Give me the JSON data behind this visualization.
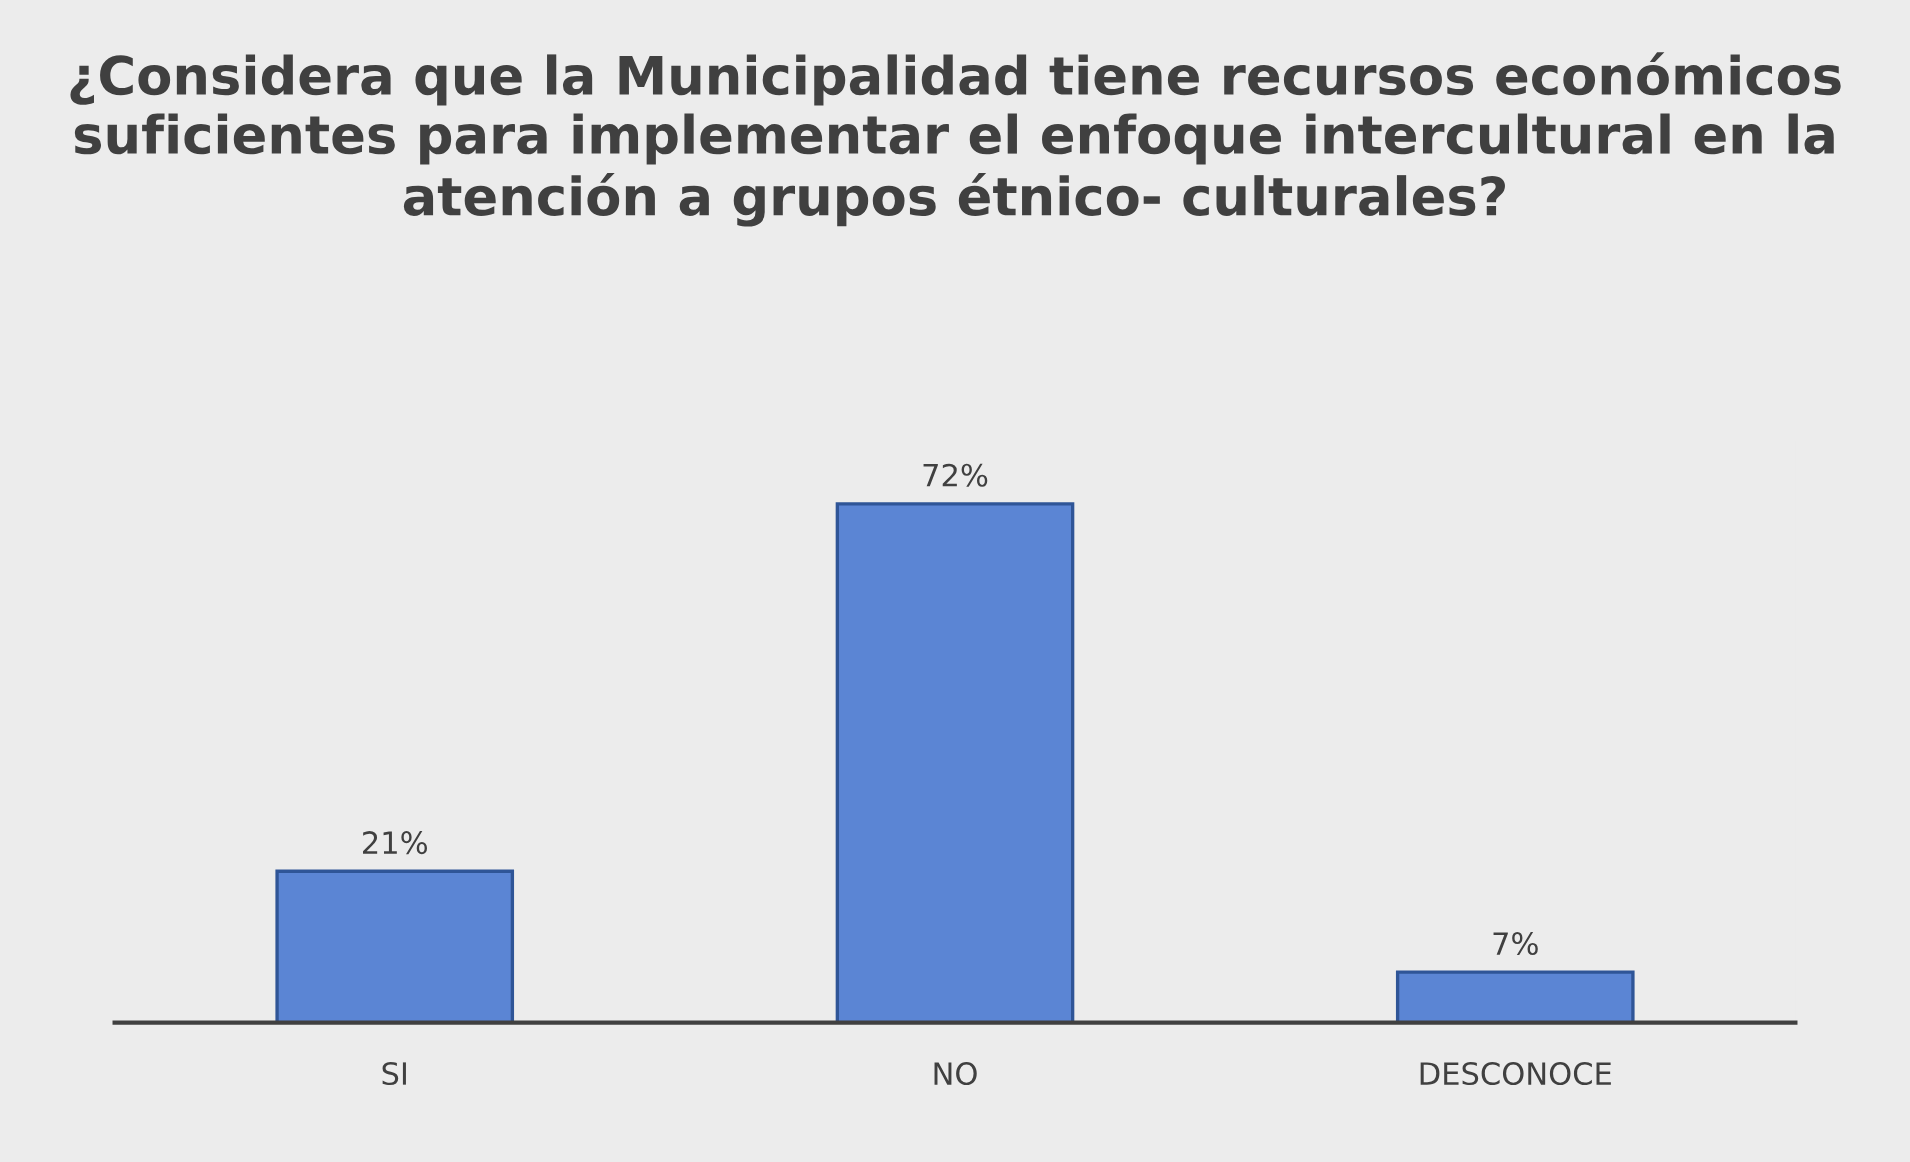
{
  "chart_data": {
    "type": "bar",
    "title": "¿Considera que la Municipalidad tiene recursos económicos suficientes para implementar el enfoque intercultural en la atención a grupos étnico- culturales?",
    "categories": [
      "SI",
      "NO",
      "DESCONOCE"
    ],
    "values": [
      21,
      72,
      7
    ],
    "value_labels": [
      "21%",
      "72%",
      "7%"
    ],
    "color": "#5b85d4",
    "grid": false,
    "legend": false
  }
}
